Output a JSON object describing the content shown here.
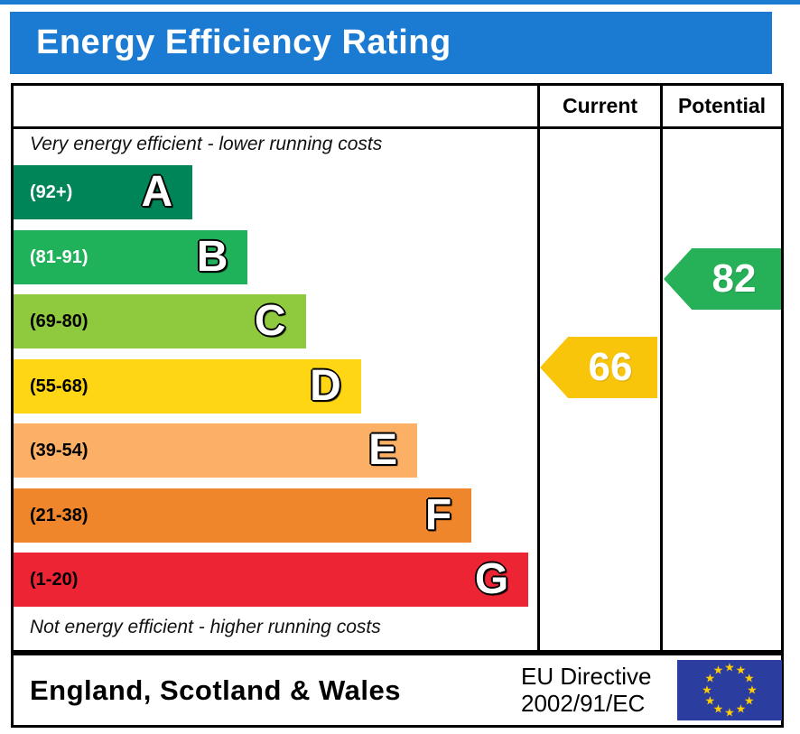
{
  "title": "Energy Efficiency Rating",
  "colors": {
    "banner_blue": "#1b7ad2",
    "border_black": "#000000"
  },
  "columns": {
    "current": "Current",
    "potential": "Potential"
  },
  "notes": {
    "top": "Very energy efficient - lower running costs",
    "bottom": "Not energy efficient - higher running costs"
  },
  "chart_data": {
    "type": "bar",
    "title": "Energy Efficiency Rating",
    "bands": [
      {
        "letter": "A",
        "range_label": "(92+)",
        "range_min": 92,
        "width_pct": 34,
        "color": "#008558",
        "label_color": "#ffffff"
      },
      {
        "letter": "B",
        "range_label": "(81-91)",
        "range_min": 81,
        "range_max": 91,
        "width_pct": 44.5,
        "color": "#1fb25a",
        "label_color": "#ffffff"
      },
      {
        "letter": "C",
        "range_label": "(69-80)",
        "range_min": 69,
        "range_max": 80,
        "width_pct": 55.5,
        "color": "#8fc93e",
        "label_color": "#000000"
      },
      {
        "letter": "D",
        "range_label": "(55-68)",
        "range_min": 55,
        "range_max": 68,
        "width_pct": 66,
        "color": "#ffd613",
        "label_color": "#000000"
      },
      {
        "letter": "E",
        "range_label": "(39-54)",
        "range_min": 39,
        "range_max": 54,
        "width_pct": 76.7,
        "color": "#fbb065",
        "label_color": "#000000"
      },
      {
        "letter": "F",
        "range_label": "(21-38)",
        "range_min": 21,
        "range_max": 38,
        "width_pct": 87,
        "color": "#f0862b",
        "label_color": "#000000"
      },
      {
        "letter": "G",
        "range_label": "(1-20)",
        "range_min": 1,
        "range_max": 20,
        "width_pct": 97.8,
        "color": "#ec2434",
        "label_color": "#000000"
      }
    ],
    "ratings": {
      "current": {
        "value": 66,
        "band": "D",
        "color": "#f8c50b"
      },
      "potential": {
        "value": 82,
        "band": "B",
        "color": "#26b159"
      }
    },
    "legend_position": "none",
    "grid": false
  },
  "footer": {
    "region": "England, Scotland & Wales",
    "directive_line1": "EU Directive",
    "directive_line2": "2002/91/EC",
    "eu_flag": {
      "background": "#2b3d9e",
      "star_color": "#ffcc00",
      "star_count": 12
    }
  }
}
